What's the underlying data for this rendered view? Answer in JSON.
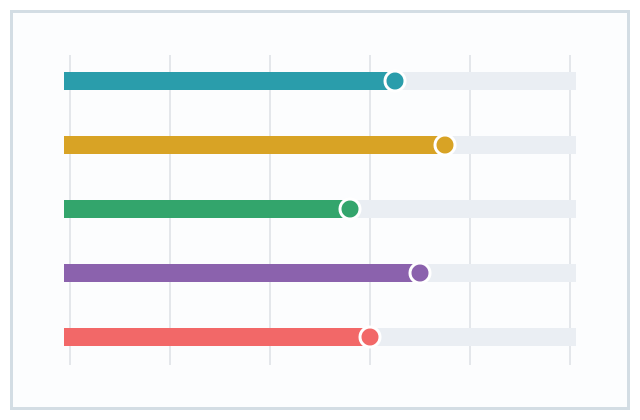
{
  "chart_data": {
    "type": "bar",
    "orientation": "horizontal",
    "values": [
      65,
      75,
      56,
      70,
      60
    ],
    "colors": [
      "#2a9dab",
      "#d8a325",
      "#33a56c",
      "#8b62ad",
      "#f26868"
    ],
    "xlim": [
      0,
      100
    ],
    "xticks": [
      0,
      20,
      40,
      60,
      80,
      100
    ],
    "grid": true
  }
}
